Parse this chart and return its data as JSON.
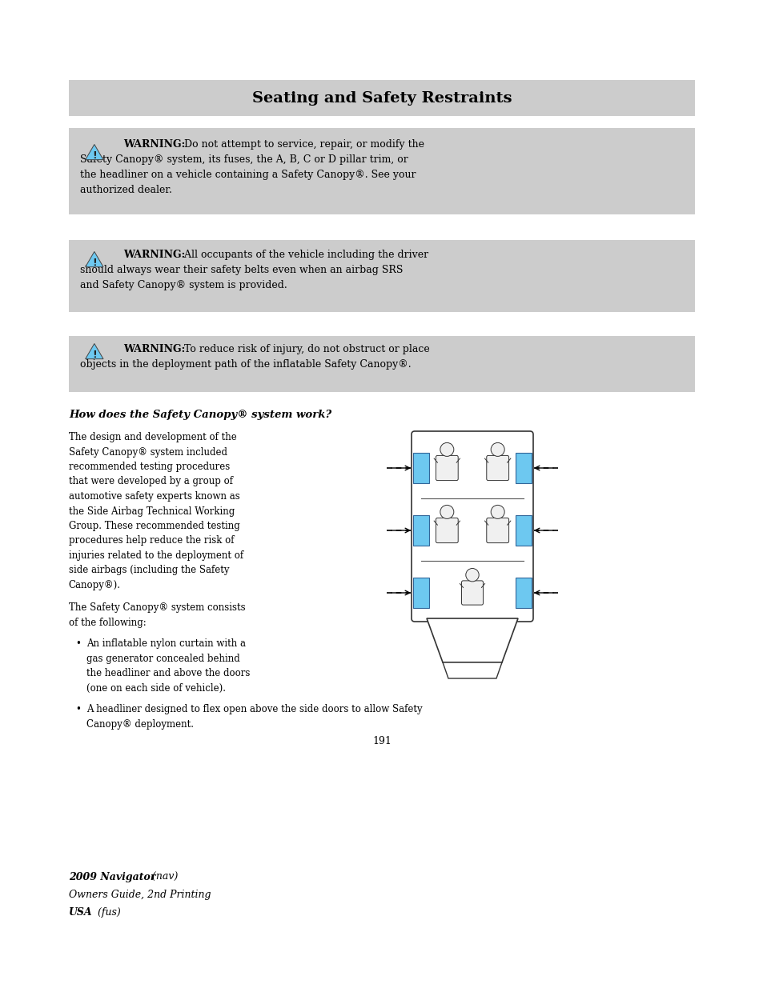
{
  "bg_color": "#ffffff",
  "header_bg": "#cccccc",
  "warning_bg": "#cccccc",
  "header_text": "Seating and Safety Restraints",
  "section_heading": "How does the Safety Canopy® system work?",
  "para1_lines": [
    "The design and development of the",
    "Safety Canopy® system included",
    "recommended testing procedures",
    "that were developed by a group of",
    "automotive safety experts known as",
    "the Side Airbag Technical Working",
    "Group. These recommended testing",
    "procedures help reduce the risk of",
    "injuries related to the deployment of",
    "side airbags (including the Safety",
    "Canopy®)."
  ],
  "para2_lines": [
    "The Safety Canopy® system consists",
    "of the following:"
  ],
  "bullet1_lines": [
    "An inflatable nylon curtain with a",
    "gas generator concealed behind",
    "the headliner and above the doors",
    "(one on each side of vehicle)."
  ],
  "bullet2_line1": "A headliner designed to flex open above the side doors to allow Safety",
  "bullet2_line2": "Canopy® deployment.",
  "page_number": "191",
  "footer_line1_bold": "2009 Navigator",
  "footer_line1_normal": " (nav)",
  "footer_line2": "Owners Guide, 2nd Printing",
  "footer_line3_bold": "USA",
  "footer_line3_normal": " (fus)",
  "text_color": "#000000",
  "icon_fill": "#6dc8f0",
  "lm": 0.09,
  "rm": 0.91,
  "col_split": 0.41
}
